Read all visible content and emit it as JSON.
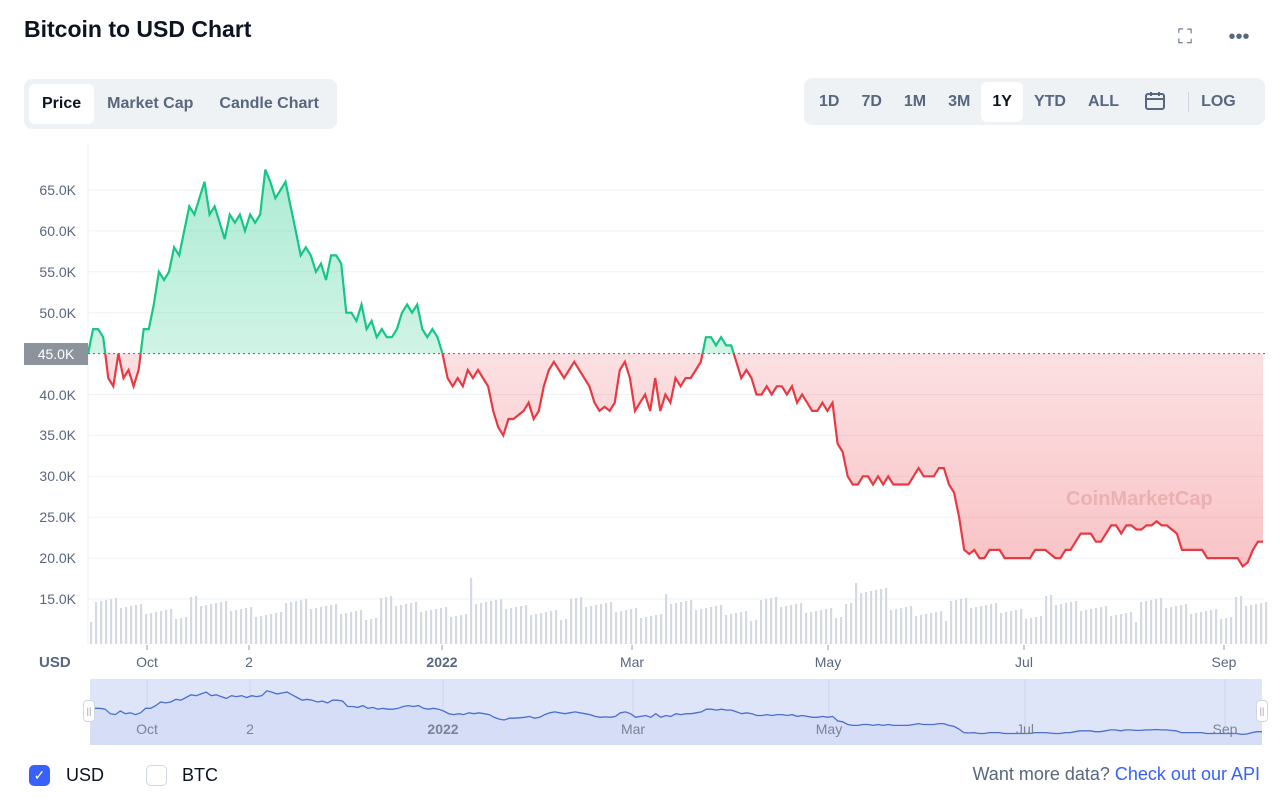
{
  "title": "Bitcoin to USD Chart",
  "tabs": [
    "Price",
    "Market Cap",
    "Candle Chart"
  ],
  "ranges": [
    "1D",
    "7D",
    "1M",
    "3M",
    "1Y",
    "YTD",
    "ALL"
  ],
  "log_label": "LOG",
  "watermark": "CoinMarketCap",
  "currency_checks": [
    {
      "label": "USD",
      "checked": true
    },
    {
      "label": "BTC",
      "checked": false
    }
  ],
  "more_data": {
    "text": "Want more data?",
    "link": "Check out our API"
  },
  "colors": {
    "up": "#16c784",
    "down": "#ea3943",
    "accent": "#3861fb"
  },
  "chart_data": {
    "type": "line",
    "title": "Bitcoin to USD Chart",
    "ylabel": "USD",
    "ylim": [
      10,
      70
    ],
    "y_ticks": [
      "65.0K",
      "60.0K",
      "55.0K",
      "50.0K",
      "40.0K",
      "35.0K",
      "30.0K",
      "25.0K",
      "20.0K",
      "15.0K"
    ],
    "current_value_label": "45.0K",
    "baseline": 45,
    "x_ticks": [
      "Oct",
      "2",
      "2022",
      "Mar",
      "May",
      "Jul",
      "Sep"
    ],
    "price_k": [
      45,
      48,
      48,
      47,
      42,
      41,
      45,
      42,
      43,
      41,
      43,
      48,
      48,
      51,
      55,
      54,
      55,
      58,
      57,
      60,
      63,
      62,
      64,
      66,
      62,
      63,
      61,
      59,
      62,
      61,
      62,
      60,
      62,
      61,
      62,
      67.5,
      66,
      64,
      65,
      66,
      63,
      60,
      57,
      58,
      57,
      55,
      56,
      54,
      57,
      57,
      56,
      50,
      50,
      49,
      51,
      48,
      49,
      47,
      48,
      47,
      47,
      48,
      50,
      51,
      50,
      51,
      48,
      47,
      48,
      47,
      45,
      42,
      41,
      42,
      41,
      43,
      42,
      43,
      42,
      41,
      38,
      36,
      35,
      37,
      37,
      37.5,
      38,
      39,
      37,
      38,
      41,
      43,
      44,
      43,
      42,
      43,
      44,
      43,
      42,
      41,
      39,
      38,
      38.5,
      38,
      39,
      43,
      44,
      42,
      38,
      39,
      40,
      38,
      42,
      38,
      40,
      39,
      42,
      41,
      42,
      42,
      43,
      44,
      47,
      47,
      46,
      47,
      46,
      46,
      44,
      42,
      43,
      42,
      40,
      40,
      41,
      40,
      41,
      41,
      40,
      41,
      39,
      40,
      39,
      38,
      38,
      39,
      38,
      39,
      34,
      33,
      30,
      29,
      29,
      30,
      30,
      29,
      30,
      29,
      30,
      29,
      29,
      29,
      29,
      30,
      31,
      30,
      30,
      30,
      31,
      31,
      29,
      28,
      25,
      21,
      20.5,
      21,
      20,
      20,
      21,
      21,
      21,
      20,
      20,
      20,
      20,
      20,
      20,
      21,
      21,
      21,
      20.5,
      20,
      20,
      21,
      21,
      22,
      23,
      23,
      23,
      22,
      22,
      23,
      24,
      24,
      23,
      24,
      24,
      23.5,
      23.5,
      24,
      24,
      24.5,
      24,
      24,
      23.5,
      23,
      21,
      21,
      21,
      21,
      21,
      20,
      20,
      20,
      20,
      20,
      20,
      20,
      19,
      19.5,
      21,
      22,
      22
    ]
  }
}
